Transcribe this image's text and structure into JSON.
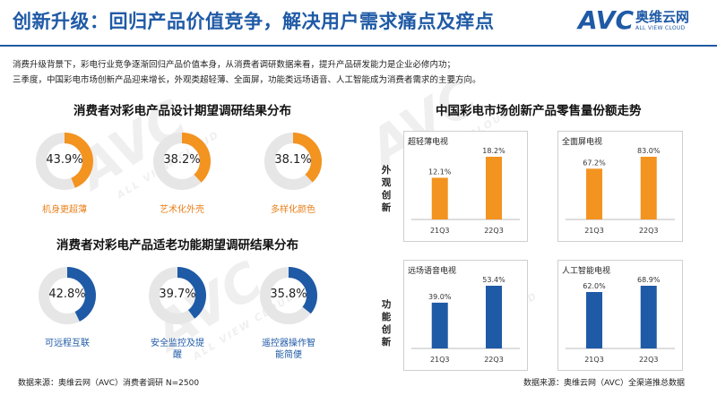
{
  "header": {
    "title": "创新升级：回归产品价值竞争，解决用户需求痛点及痒点",
    "logo_mark": "AVC",
    "logo_cn": "奥维云网",
    "logo_en": "ALL VIEW CLOUD"
  },
  "intro": [
    "消费升级背景下，彩电行业竞争逐渐回归产品价值本身，从消费者调研数据来看，提升产品研发能力是企业必修内功；",
    "三季度，中国彩电市场创新产品迎来增长，外观类超轻薄、全面屏，功能类远场语音、人工智能成为消费者需求的主要方向。"
  ],
  "watermark": {
    "mark": "AVC",
    "text": "ALL VIEW CLOUD"
  },
  "colors": {
    "orange": "#f39320",
    "blue": "#1f5aa6",
    "track": "#e6e6e6"
  },
  "left": {
    "design_title": "消费者对彩电产品设计期望调研结果分布",
    "design_items": [
      {
        "value": 43.9,
        "label": "43.9%",
        "name": "机身更超薄"
      },
      {
        "value": 38.2,
        "label": "38.2%",
        "name": "艺术化外壳"
      },
      {
        "value": 38.1,
        "label": "38.1%",
        "name": "多样化颜色"
      }
    ],
    "func_title": "消费者对彩电产品适老功能期望调研结果分布",
    "func_items": [
      {
        "value": 42.8,
        "label": "42.8%",
        "name": "可远程互联"
      },
      {
        "value": 39.7,
        "label": "39.7%",
        "name": "安全监控及提醒"
      },
      {
        "value": 35.8,
        "label": "35.8%",
        "name": "遥控器操作智能简便"
      }
    ]
  },
  "right": {
    "title": "中国彩电市场创新产品零售量份额走势",
    "row_labels": {
      "appearance": "外观创新",
      "function": "功能创新"
    }
  },
  "chart_data": [
    {
      "type": "pie",
      "variant": "donut",
      "title": "消费者对彩电产品设计期望调研结果分布",
      "categories": [
        "机身更超薄",
        "艺术化外壳",
        "多样化颜色"
      ],
      "values": [
        43.9,
        38.2,
        38.1
      ],
      "unit": "%"
    },
    {
      "type": "pie",
      "variant": "donut",
      "title": "消费者对彩电产品适老功能期望调研结果分布",
      "categories": [
        "可远程互联",
        "安全监控及提醒",
        "遥控器操作智能简便"
      ],
      "values": [
        42.8,
        39.7,
        35.8
      ],
      "unit": "%"
    },
    {
      "type": "bar",
      "title": "超轻薄电视",
      "categories": [
        "21Q3",
        "22Q3"
      ],
      "values": [
        12.1,
        18.2
      ],
      "labels": [
        "12.1%",
        "18.2%"
      ],
      "color": "orange"
    },
    {
      "type": "bar",
      "title": "全面屏电视",
      "categories": [
        "21Q3",
        "22Q3"
      ],
      "values": [
        67.2,
        83.0
      ],
      "labels": [
        "67.2%",
        "83.0%"
      ],
      "color": "orange"
    },
    {
      "type": "bar",
      "title": "远场语音电视",
      "categories": [
        "21Q3",
        "22Q3"
      ],
      "values": [
        39.0,
        53.4
      ],
      "labels": [
        "39.0%",
        "53.4%"
      ],
      "color": "blue"
    },
    {
      "type": "bar",
      "title": "人工智能电视",
      "categories": [
        "21Q3",
        "22Q3"
      ],
      "values": [
        62.0,
        68.9
      ],
      "labels": [
        "62.0%",
        "68.9%"
      ],
      "color": "blue"
    }
  ],
  "footer": {
    "left": "数据来源：奥维云网（AVC）消费者调研  N=2500",
    "right": "数据来源：奥维云网（AVC）全渠道推总数据"
  }
}
